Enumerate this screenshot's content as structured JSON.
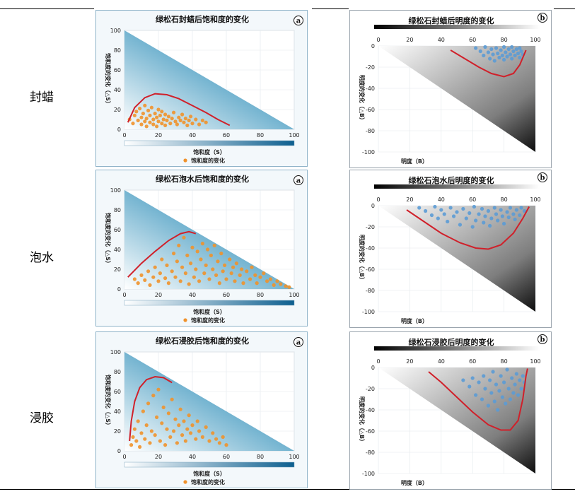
{
  "rows": [
    {
      "label": "封蜡"
    },
    {
      "label": "泡水"
    },
    {
      "label": "浸胶"
    }
  ],
  "chart_data": [
    {
      "type": "scatter",
      "title": "绿松石封蜡后饱和度的变化",
      "badge": "a",
      "xlabel": "饱和度（S）",
      "ylabel": "饱和度的变化（△S）",
      "legend": "饱和度的变化",
      "legend_position": "bottom",
      "xlim": [
        0,
        100
      ],
      "ylim": [
        0,
        100
      ],
      "xticks": [
        0,
        20,
        40,
        60,
        80,
        100
      ],
      "yticks": [
        0,
        20,
        40,
        60,
        80,
        100
      ],
      "background_region": "triangle",
      "point_color": "#f0922b",
      "curve_color": "#d0202a",
      "points": [
        [
          3,
          10
        ],
        [
          5,
          6
        ],
        [
          6,
          14
        ],
        [
          7,
          18
        ],
        [
          8,
          9
        ],
        [
          9,
          21
        ],
        [
          10,
          5
        ],
        [
          10,
          12
        ],
        [
          11,
          16
        ],
        [
          12,
          8
        ],
        [
          12,
          24
        ],
        [
          13,
          3
        ],
        [
          13,
          11
        ],
        [
          14,
          19
        ],
        [
          15,
          7
        ],
        [
          15,
          14
        ],
        [
          16,
          22
        ],
        [
          17,
          5
        ],
        [
          17,
          10
        ],
        [
          18,
          16
        ],
        [
          19,
          3
        ],
        [
          19,
          12
        ],
        [
          20,
          8
        ],
        [
          20,
          20
        ],
        [
          21,
          14
        ],
        [
          22,
          6
        ],
        [
          22,
          18
        ],
        [
          23,
          10
        ],
        [
          24,
          4
        ],
        [
          24,
          15
        ],
        [
          25,
          9
        ],
        [
          26,
          13
        ],
        [
          27,
          6
        ],
        [
          28,
          11
        ],
        [
          29,
          17
        ],
        [
          30,
          8
        ],
        [
          31,
          5
        ],
        [
          32,
          12
        ],
        [
          33,
          9
        ],
        [
          34,
          15
        ],
        [
          35,
          7
        ],
        [
          36,
          11
        ],
        [
          37,
          4
        ],
        [
          38,
          9
        ],
        [
          39,
          13
        ],
        [
          40,
          6
        ],
        [
          42,
          10
        ],
        [
          44,
          5
        ],
        [
          46,
          9
        ],
        [
          48,
          7
        ]
      ],
      "curve": [
        [
          2,
          7
        ],
        [
          6,
          22
        ],
        [
          12,
          32
        ],
        [
          18,
          36
        ],
        [
          25,
          35
        ],
        [
          32,
          31
        ],
        [
          40,
          24
        ],
        [
          48,
          17
        ],
        [
          55,
          10
        ],
        [
          62,
          4
        ]
      ]
    },
    {
      "type": "scatter",
      "title": "绿松石封蜡后明度的变化",
      "badge": "b",
      "xlabel": "明度（B）",
      "ylabel": "明度的变化（△B）",
      "xlim": [
        0,
        100
      ],
      "ylim": [
        -100,
        0
      ],
      "xticks": [
        0,
        20,
        40,
        60,
        80,
        100
      ],
      "yticks": [
        0,
        -20,
        -40,
        -60,
        -80,
        -100
      ],
      "background_region": "triangle",
      "point_color": "#5b9bd5",
      "curve_color": "#d0202a",
      "points": [
        [
          62,
          -2
        ],
        [
          65,
          -5
        ],
        [
          67,
          -9
        ],
        [
          68,
          -1
        ],
        [
          70,
          -6
        ],
        [
          71,
          -12
        ],
        [
          72,
          -3
        ],
        [
          73,
          -8
        ],
        [
          74,
          -14
        ],
        [
          75,
          -2
        ],
        [
          76,
          -7
        ],
        [
          77,
          -11
        ],
        [
          78,
          -4
        ],
        [
          79,
          -9
        ],
        [
          80,
          -1
        ],
        [
          80,
          -13
        ],
        [
          81,
          -6
        ],
        [
          82,
          -10
        ],
        [
          83,
          -3
        ],
        [
          84,
          -8
        ],
        [
          85,
          -12
        ],
        [
          85,
          -1
        ],
        [
          86,
          -5
        ],
        [
          87,
          -9
        ],
        [
          88,
          -3
        ],
        [
          89,
          -7
        ],
        [
          90,
          -11
        ],
        [
          90,
          -2
        ],
        [
          91,
          -5
        ],
        [
          92,
          -8
        ]
      ],
      "curve": [
        [
          46,
          -4
        ],
        [
          55,
          -12
        ],
        [
          64,
          -20
        ],
        [
          72,
          -26
        ],
        [
          80,
          -29
        ],
        [
          86,
          -26
        ],
        [
          90,
          -18
        ],
        [
          94,
          -4
        ]
      ]
    },
    {
      "type": "scatter",
      "title": "绿松石泡水后饱和度的变化",
      "badge": "a",
      "xlabel": "饱和度（S）",
      "ylabel": "饱和度的变化（△S）",
      "legend": "饱和度的变化",
      "legend_position": "bottom",
      "xlim": [
        0,
        100
      ],
      "ylim": [
        0,
        100
      ],
      "xticks": [
        0,
        20,
        40,
        60,
        80,
        100
      ],
      "yticks": [
        0,
        20,
        40,
        60,
        80,
        100
      ],
      "background_region": "triangle",
      "point_color": "#f0922b",
      "curve_color": "#d0202a",
      "points": [
        [
          6,
          10
        ],
        [
          8,
          6
        ],
        [
          10,
          14
        ],
        [
          12,
          9
        ],
        [
          14,
          18
        ],
        [
          15,
          4
        ],
        [
          17,
          12
        ],
        [
          18,
          22
        ],
        [
          20,
          8
        ],
        [
          21,
          16
        ],
        [
          22,
          30
        ],
        [
          24,
          11
        ],
        [
          25,
          24
        ],
        [
          26,
          6
        ],
        [
          28,
          18
        ],
        [
          29,
          36
        ],
        [
          30,
          12
        ],
        [
          31,
          28
        ],
        [
          32,
          44
        ],
        [
          33,
          8
        ],
        [
          34,
          22
        ],
        [
          35,
          52
        ],
        [
          36,
          16
        ],
        [
          37,
          34
        ],
        [
          38,
          5
        ],
        [
          39,
          26
        ],
        [
          40,
          42
        ],
        [
          41,
          12
        ],
        [
          42,
          20
        ],
        [
          43,
          38
        ],
        [
          44,
          8
        ],
        [
          45,
          30
        ],
        [
          46,
          46
        ],
        [
          47,
          16
        ],
        [
          48,
          24
        ],
        [
          49,
          40
        ],
        [
          50,
          10
        ],
        [
          51,
          34
        ],
        [
          52,
          20
        ],
        [
          53,
          44
        ],
        [
          54,
          14
        ],
        [
          55,
          28
        ],
        [
          56,
          6
        ],
        [
          57,
          36
        ],
        [
          58,
          18
        ],
        [
          59,
          24
        ],
        [
          60,
          10
        ],
        [
          62,
          30
        ],
        [
          63,
          16
        ],
        [
          64,
          22
        ],
        [
          65,
          8
        ],
        [
          66,
          26
        ],
        [
          68,
          14
        ],
        [
          69,
          20
        ],
        [
          70,
          6
        ],
        [
          72,
          18
        ],
        [
          74,
          10
        ],
        [
          75,
          22
        ],
        [
          77,
          14
        ],
        [
          78,
          6
        ],
        [
          80,
          12
        ],
        [
          82,
          16
        ],
        [
          84,
          8
        ],
        [
          86,
          10
        ],
        [
          88,
          4
        ],
        [
          90,
          8
        ],
        [
          92,
          5
        ],
        [
          95,
          3
        ],
        [
          97,
          2
        ]
      ],
      "curve": [
        [
          2,
          12
        ],
        [
          10,
          26
        ],
        [
          18,
          38
        ],
        [
          26,
          49
        ],
        [
          33,
          56
        ],
        [
          38,
          58
        ],
        [
          42,
          56
        ]
      ]
    },
    {
      "type": "scatter",
      "title": "绿松石泡水后明度的变化",
      "badge": "b",
      "xlabel": "明度（B）",
      "ylabel": "明度的变化（△B）",
      "xlim": [
        0,
        100
      ],
      "ylim": [
        -100,
        0
      ],
      "xticks": [
        0,
        20,
        40,
        60,
        80,
        100
      ],
      "yticks": [
        0,
        -20,
        -40,
        -60,
        -80,
        -100
      ],
      "background_region": "triangle",
      "point_color": "#5b9bd5",
      "curve_color": "#d0202a",
      "points": [
        [
          26,
          -2
        ],
        [
          30,
          -5
        ],
        [
          34,
          -9
        ],
        [
          36,
          -1
        ],
        [
          38,
          -12
        ],
        [
          40,
          -4
        ],
        [
          42,
          -8
        ],
        [
          44,
          -15
        ],
        [
          46,
          -2
        ],
        [
          48,
          -10
        ],
        [
          50,
          -6
        ],
        [
          52,
          -18
        ],
        [
          54,
          -3
        ],
        [
          56,
          -12
        ],
        [
          58,
          -7
        ],
        [
          60,
          -20
        ],
        [
          61,
          -1
        ],
        [
          62,
          -14
        ],
        [
          64,
          -8
        ],
        [
          66,
          -3
        ],
        [
          67,
          -16
        ],
        [
          68,
          -10
        ],
        [
          70,
          -5
        ],
        [
          71,
          -19
        ],
        [
          72,
          -12
        ],
        [
          74,
          -2
        ],
        [
          75,
          -8
        ],
        [
          76,
          -14
        ],
        [
          78,
          -4
        ],
        [
          79,
          -10
        ],
        [
          80,
          -17
        ],
        [
          82,
          -6
        ],
        [
          83,
          -11
        ],
        [
          84,
          -2
        ],
        [
          86,
          -8
        ],
        [
          87,
          -13
        ],
        [
          88,
          -4
        ],
        [
          90,
          -9
        ],
        [
          91,
          -2
        ],
        [
          93,
          -5
        ]
      ],
      "curve": [
        [
          18,
          -4
        ],
        [
          28,
          -14
        ],
        [
          40,
          -26
        ],
        [
          52,
          -35
        ],
        [
          62,
          -40
        ],
        [
          70,
          -41
        ],
        [
          78,
          -37
        ],
        [
          86,
          -26
        ],
        [
          92,
          -12
        ],
        [
          96,
          -1
        ]
      ]
    },
    {
      "type": "scatter",
      "title": "绿松石浸胶后饱和度的变化",
      "badge": "a",
      "xlabel": "饱和度（S）",
      "ylabel": "饱和度的变化（△S）",
      "legend": "饱和度的变化",
      "legend_position": "bottom",
      "xlim": [
        0,
        100
      ],
      "ylim": [
        0,
        100
      ],
      "xticks": [
        0,
        20,
        40,
        60,
        80,
        100
      ],
      "yticks": [
        0,
        20,
        40,
        60,
        80,
        100
      ],
      "background_region": "triangle",
      "point_color": "#f0922b",
      "curve_color": "#d0202a",
      "points": [
        [
          4,
          6
        ],
        [
          5,
          14
        ],
        [
          6,
          22
        ],
        [
          7,
          10
        ],
        [
          8,
          30
        ],
        [
          9,
          4
        ],
        [
          10,
          18
        ],
        [
          11,
          40
        ],
        [
          12,
          12
        ],
        [
          13,
          26
        ],
        [
          14,
          48
        ],
        [
          15,
          8
        ],
        [
          16,
          20
        ],
        [
          17,
          56
        ],
        [
          18,
          16
        ],
        [
          19,
          34
        ],
        [
          20,
          62
        ],
        [
          21,
          10
        ],
        [
          22,
          28
        ],
        [
          23,
          44
        ],
        [
          24,
          6
        ],
        [
          25,
          22
        ],
        [
          26,
          38
        ],
        [
          27,
          14
        ],
        [
          28,
          52
        ],
        [
          29,
          20
        ],
        [
          30,
          32
        ],
        [
          31,
          8
        ],
        [
          32,
          26
        ],
        [
          33,
          42
        ],
        [
          34,
          16
        ],
        [
          35,
          30
        ],
        [
          36,
          10
        ],
        [
          37,
          22
        ],
        [
          38,
          36
        ],
        [
          39,
          18
        ],
        [
          40,
          26
        ],
        [
          42,
          12
        ],
        [
          43,
          30
        ],
        [
          44,
          20
        ],
        [
          46,
          14
        ],
        [
          48,
          24
        ],
        [
          50,
          10
        ],
        [
          52,
          18
        ],
        [
          54,
          12
        ],
        [
          56,
          8
        ],
        [
          58,
          14
        ],
        [
          60,
          6
        ]
      ],
      "curve": [
        [
          3,
          10
        ],
        [
          4,
          30
        ],
        [
          6,
          50
        ],
        [
          9,
          64
        ],
        [
          13,
          72
        ],
        [
          18,
          75
        ],
        [
          23,
          74
        ],
        [
          28,
          69
        ]
      ]
    },
    {
      "type": "scatter",
      "title": "绿松石浸胶后明度的变化",
      "badge": "b",
      "xlabel": "明度（B）",
      "ylabel": "明度的变化（△B）",
      "xlim": [
        0,
        100
      ],
      "ylim": [
        -100,
        0
      ],
      "xticks": [
        0,
        20,
        40,
        60,
        80,
        100
      ],
      "yticks": [
        0,
        -20,
        -40,
        -60,
        -80,
        -100
      ],
      "background_region": "triangle",
      "point_color": "#5b9bd5",
      "curve_color": "#d0202a",
      "points": [
        [
          54,
          -12
        ],
        [
          58,
          -18
        ],
        [
          60,
          -10
        ],
        [
          62,
          -26
        ],
        [
          64,
          -14
        ],
        [
          66,
          -30
        ],
        [
          67,
          -8
        ],
        [
          68,
          -20
        ],
        [
          70,
          -36
        ],
        [
          71,
          -12
        ],
        [
          72,
          -24
        ],
        [
          73,
          -4
        ],
        [
          74,
          -32
        ],
        [
          75,
          -16
        ],
        [
          76,
          -40
        ],
        [
          77,
          -22
        ],
        [
          78,
          -8
        ],
        [
          79,
          -28
        ],
        [
          80,
          -14
        ],
        [
          81,
          -34
        ],
        [
          82,
          -2
        ],
        [
          83,
          -20
        ],
        [
          84,
          -30
        ],
        [
          85,
          -10
        ],
        [
          86,
          -24
        ],
        [
          87,
          -16
        ],
        [
          88,
          -6
        ],
        [
          89,
          -26
        ],
        [
          90,
          -12
        ],
        [
          91,
          -20
        ],
        [
          92,
          -8
        ],
        [
          93,
          -14
        ]
      ],
      "curve": [
        [
          32,
          -4
        ],
        [
          40,
          -14
        ],
        [
          50,
          -28
        ],
        [
          60,
          -42
        ],
        [
          70,
          -54
        ],
        [
          78,
          -59
        ],
        [
          84,
          -59
        ],
        [
          89,
          -50
        ],
        [
          92,
          -30
        ],
        [
          94,
          -8
        ],
        [
          95,
          -1
        ]
      ]
    }
  ]
}
